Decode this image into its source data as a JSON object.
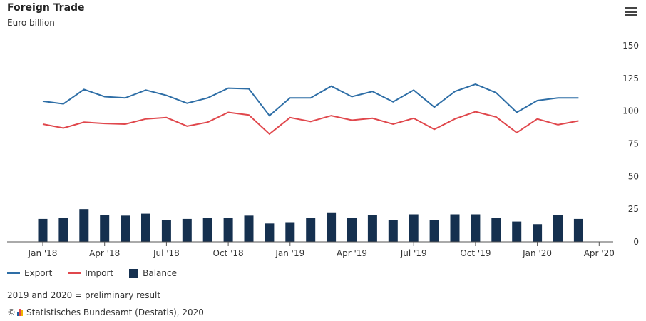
{
  "header": {
    "title": "Foreign Trade",
    "subtitle": "Euro billion",
    "menu_icon": "hamburger-menu-icon"
  },
  "chart_data": {
    "type": "bar+line",
    "title": "Foreign Trade",
    "ylabel": "Euro billion",
    "ylim": [
      0,
      150
    ],
    "yticks": [
      0,
      25,
      50,
      75,
      100,
      125,
      150
    ],
    "xticks": [
      "Jan '18",
      "Apr '18",
      "Jul '18",
      "Oct '18",
      "Jan '19",
      "Apr '19",
      "Jul '19",
      "Oct '19",
      "Jan '20",
      "Apr '20"
    ],
    "months_count": 27,
    "grid": false,
    "legend_position": "bottom-left",
    "series": [
      {
        "name": "Export",
        "type": "line",
        "color": "#2e6ea6",
        "values": [
          107.5,
          105.5,
          116.5,
          111,
          110,
          116,
          112,
          106,
          110,
          117.5,
          117,
          96.5,
          110,
          110,
          119,
          111,
          115,
          107,
          116,
          103,
          115,
          120.5,
          114,
          99,
          108,
          110,
          110
        ]
      },
      {
        "name": "Import",
        "type": "line",
        "color": "#e0474c",
        "values": [
          90,
          87,
          91.5,
          90.5,
          90,
          94,
          95,
          88.5,
          91.5,
          99,
          97,
          82.5,
          95,
          92,
          96.5,
          93,
          94.5,
          90,
          94.5,
          86,
          94,
          99.5,
          95.5,
          83.5,
          94,
          89.5,
          92.5
        ]
      },
      {
        "name": "Balance",
        "type": "bar",
        "color": "#15304f",
        "values": [
          17.5,
          18.5,
          25,
          20.5,
          20,
          21.5,
          16.5,
          17.5,
          18,
          18.5,
          20,
          14,
          15,
          18,
          22.5,
          18,
          20.5,
          16.5,
          21,
          16.5,
          21,
          21,
          18.5,
          15.5,
          13.5,
          20.5,
          17.5
        ]
      }
    ]
  },
  "legend": {
    "items": [
      {
        "label": "Export",
        "color": "#2e6ea6",
        "shape": "line"
      },
      {
        "label": "Import",
        "color": "#e0474c",
        "shape": "line"
      },
      {
        "label": "Balance",
        "color": "#15304f",
        "shape": "box"
      }
    ]
  },
  "footer": {
    "note": "2019 and 2020 = preliminary result",
    "copyright_symbol": "©",
    "source": "Statistisches Bundesamt (Destatis), 2020",
    "source_icon": "destatis-logo-icon"
  }
}
